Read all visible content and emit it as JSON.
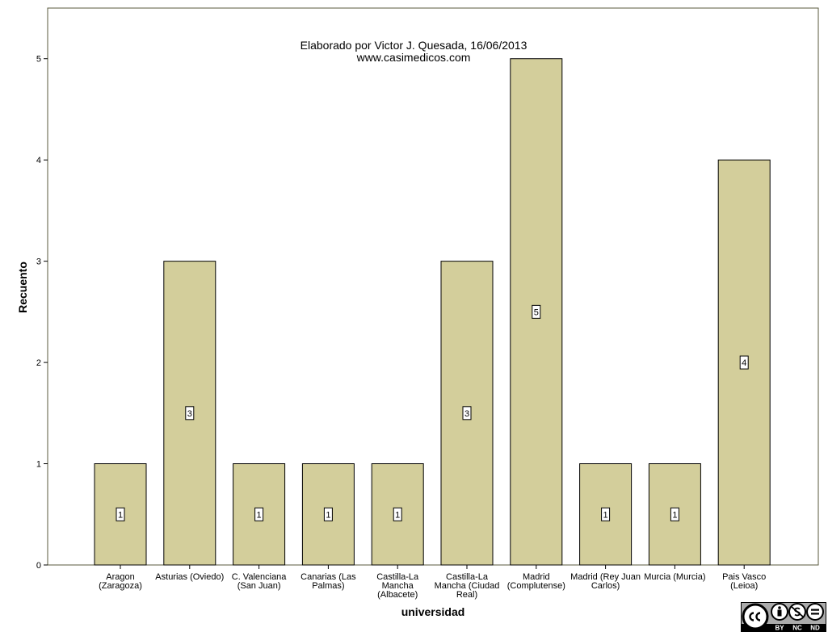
{
  "chart_data": {
    "type": "bar",
    "categories": [
      [
        "Aragon",
        "(Zaragoza)"
      ],
      [
        "Asturias (Oviedo)"
      ],
      [
        "C. Valenciana",
        "(San Juan)"
      ],
      [
        "Canarias (Las",
        "Palmas)"
      ],
      [
        "Castilla-La",
        "Mancha",
        "(Albacete)"
      ],
      [
        "Castilla-La",
        "Mancha (Ciudad",
        "Real)"
      ],
      [
        "Madrid",
        "(Complutense)"
      ],
      [
        "Madrid (Rey Juan",
        "Carlos)"
      ],
      [
        "Murcia (Murcia)"
      ],
      [
        "Pais Vasco",
        "(Leioa)"
      ]
    ],
    "values": [
      1,
      3,
      1,
      1,
      1,
      3,
      5,
      1,
      1,
      4
    ],
    "data_labels": [
      "1",
      "3",
      "1",
      "1",
      "1",
      "3",
      "5",
      "1",
      "1",
      "4"
    ],
    "xlabel": "universidad",
    "ylabel": "Recuento",
    "ylim": [
      0,
      5.5
    ],
    "yticks": [
      0,
      1,
      2,
      3,
      4,
      5
    ],
    "grid": false,
    "annotation": [
      "Elaborado por Victor J. Quesada, 16/06/2013",
      "www.casimedicos.com"
    ],
    "colors": {
      "bar_fill": "#d3ce9b",
      "plot_background": "#ffffff",
      "frame": "#5a5a3c"
    }
  },
  "license_badge": {
    "text": [
      "BY",
      "NC",
      "ND"
    ],
    "icons": [
      "cc-icon",
      "attribution-icon",
      "noncommercial-icon",
      "noderivatives-icon"
    ]
  }
}
